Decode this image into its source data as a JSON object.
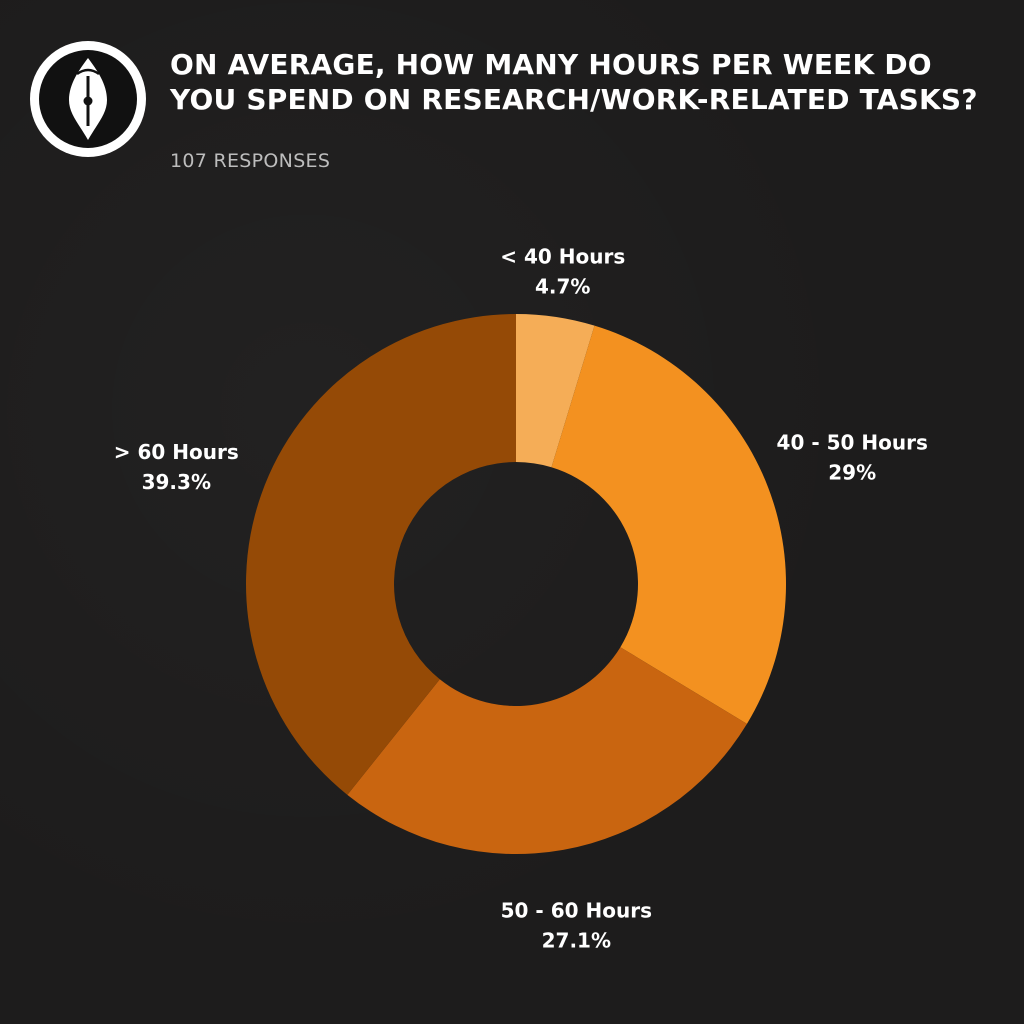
{
  "header": {
    "title": "ON AVERAGE, HOW MANY HOURS PER WEEK DO YOU SPEND ON RESEARCH/WORK-RELATED TASKS?",
    "subtitle": "107 RESPONSES",
    "logo_icon": "fountain-pen-nib-icon"
  },
  "colors": {
    "background": "#1d1c1c",
    "text": "#ffffff",
    "subtitle": "#bdbdbd"
  },
  "chart_data": {
    "type": "pie",
    "donut": true,
    "title": "ON AVERAGE, HOW MANY HOURS PER WEEK DO YOU SPEND ON RESEARCH/WORK-RELATED TASKS?",
    "subtitle": "107 RESPONSES",
    "categories": [
      "< 40 Hours",
      "40 - 50 Hours",
      "50 - 60 Hours",
      "> 60 Hours"
    ],
    "values": [
      4.7,
      29,
      27.1,
      39.3
    ],
    "value_labels": [
      "4.7%",
      "29%",
      "27.1%",
      "39.3%"
    ],
    "colors": [
      "#f5ad57",
      "#f39120",
      "#c96510",
      "#954a06"
    ],
    "legend": "none"
  }
}
